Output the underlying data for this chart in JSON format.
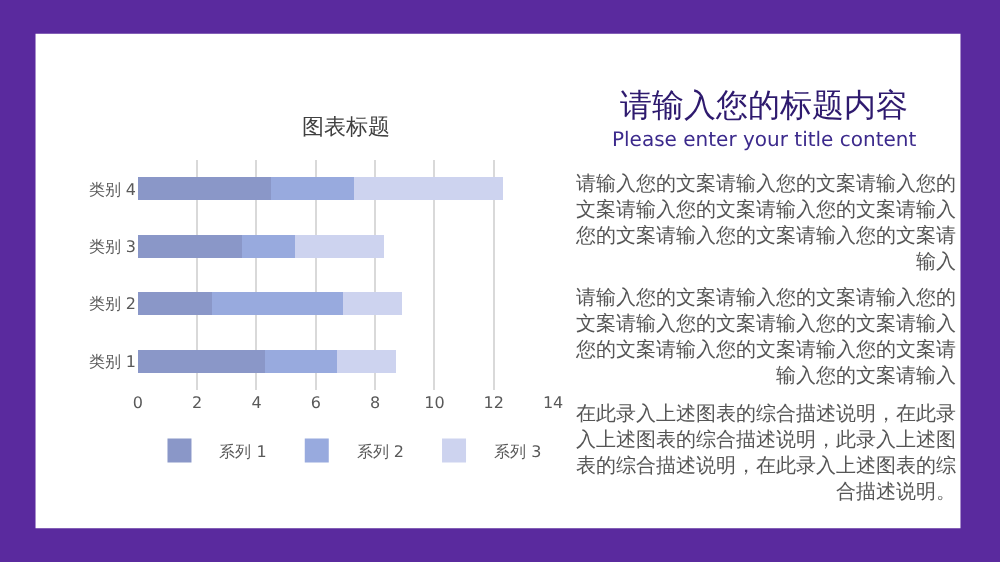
{
  "chart_data": {
    "type": "bar",
    "orientation": "horizontal",
    "stacked": true,
    "title": "图表标题",
    "categories": [
      "类别 4",
      "类别 3",
      "类别 2",
      "类别 1"
    ],
    "series": [
      {
        "name": "系列 1",
        "color": "#8a97c8",
        "values": [
          4.5,
          3.5,
          2.5,
          4.3
        ]
      },
      {
        "name": "系列 2",
        "color": "#98aade",
        "values": [
          2.8,
          1.8,
          4.4,
          2.4
        ]
      },
      {
        "name": "系列 3",
        "color": "#cdd3ef",
        "values": [
          5,
          3,
          2,
          2
        ]
      }
    ],
    "xlim": [
      0,
      14
    ],
    "xticks": [
      0,
      2,
      4,
      6,
      8,
      10,
      12,
      14
    ],
    "grid": "x",
    "legend": "bottom",
    "annotations": [
      "请输入您的标题内容",
      "Please enter your title content",
      "请输入您的文案请输入您的文案请输入您的文案请输入您的文案请输入您的文案请输入您的文案请输入您的文案请输入您的文案请输入",
      "请输入您的文案请输入您的文案请输入您的文案请输入您的文案请输入您的文案请输入您的文案请输入您的文案请输入您的文案请输入您的文案请输入",
      "在此录入上述图表的综合描述说明，在此录入上述图表的综合描述说明，此录入上述图表的综合描述说明，在此录入上述图表的综合描述说明。"
    ]
  }
}
